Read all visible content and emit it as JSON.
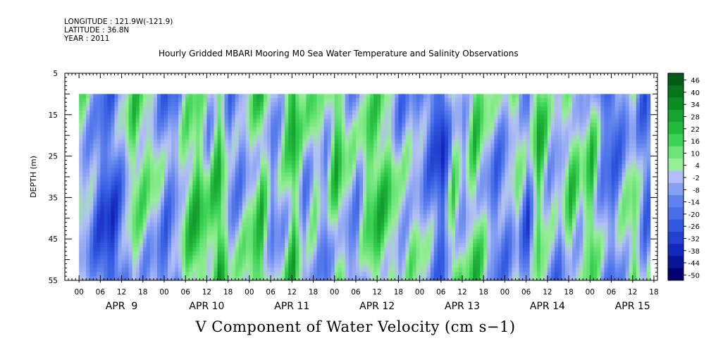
{
  "header": {
    "longitude": "LONGITUDE : 121.9W(-121.9)",
    "latitude": "LATITUDE : 36.8N",
    "year": "YEAR : 2011"
  },
  "chart_data": {
    "type": "heatmap",
    "title": "Hourly Gridded MBARI Mooring M0 Sea Water Temperature and Salinity Observations",
    "caption": "V Component of Water Velocity (cm s−1)",
    "ylabel": "DEPTH (m)",
    "ylim": [
      5,
      55
    ],
    "y_inverted": true,
    "y_ticks": [
      "5",
      "15",
      "25",
      "35",
      "45",
      "55"
    ],
    "x_hour_ticks": [
      "00",
      "06",
      "12",
      "18",
      "00",
      "06",
      "12",
      "18",
      "00",
      "06",
      "12",
      "18",
      "00",
      "06",
      "12",
      "18",
      "00",
      "06",
      "12",
      "18",
      "00",
      "06",
      "12",
      "18",
      "00",
      "06",
      "12",
      "18"
    ],
    "x_day_labels": [
      "APR  9",
      "APR 10",
      "APR 11",
      "APR 12",
      "APR 13",
      "APR 14",
      "APR 15"
    ],
    "x_range_hours": [
      -4,
      163
    ],
    "data_start_hour": 0,
    "data_start_depth": 10,
    "colorbar": {
      "labels": [
        "46",
        "40",
        "34",
        "28",
        "22",
        "16",
        "10",
        "4",
        "-2",
        "-8",
        "-14",
        "-20",
        "-26",
        "-32",
        "-38",
        "-44",
        "-50"
      ],
      "min": -50,
      "max": 50
    },
    "columns": [
      {
        "day": "APR 9",
        "pattern": [
          3,
          -6,
          -20,
          -24,
          -10,
          8,
          2,
          -4
        ]
      },
      {
        "day": "APR 10",
        "pattern": [
          -18,
          -12,
          6,
          14,
          0,
          20,
          -8,
          -6
        ]
      },
      {
        "day": "APR 11",
        "pattern": [
          6,
          18,
          -8,
          2,
          22,
          -6,
          4,
          -10
        ]
      },
      {
        "day": "APR 12",
        "pattern": [
          14,
          -4,
          -12,
          8,
          12,
          6,
          -8,
          -2
        ]
      },
      {
        "day": "APR 13",
        "pattern": [
          -6,
          -16,
          -26,
          10,
          -4,
          16,
          2,
          -12
        ]
      },
      {
        "day": "APR 14",
        "pattern": [
          -8,
          4,
          -18,
          16,
          -6,
          -10,
          8,
          -4
        ]
      },
      {
        "day": "APR 15",
        "pattern": [
          12,
          -14,
          -20,
          -6,
          6,
          -16,
          -8,
          10
        ]
      }
    ]
  }
}
